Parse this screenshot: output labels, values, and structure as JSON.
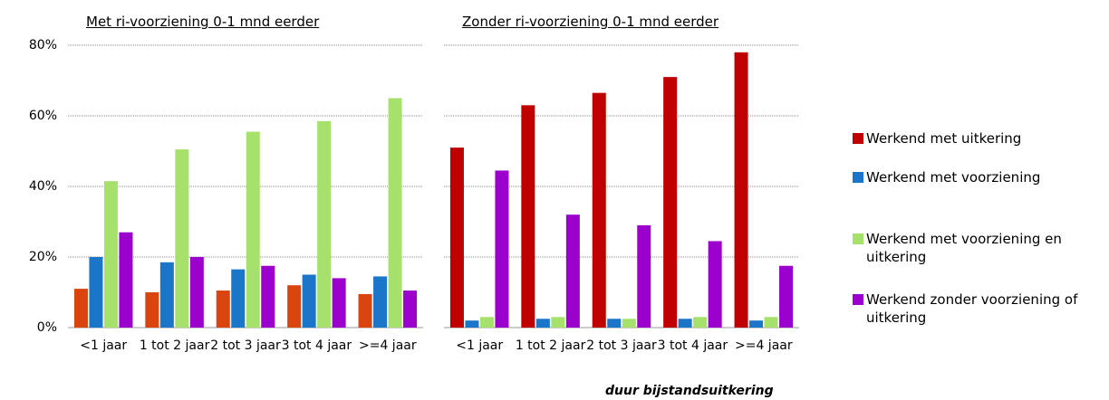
{
  "chart_data": [
    {
      "type": "bar",
      "title": "Met ri-voorziening 0-1 mnd eerder",
      "categories": [
        "<1 jaar",
        "1 tot 2 jaar",
        "2 tot 3 jaar",
        "3 tot 4 jaar",
        ">=4 jaar"
      ],
      "series": [
        {
          "color": "#d9440f",
          "values": [
            11,
            10,
            10.5,
            12,
            9.5
          ]
        },
        {
          "color": "#1b75c9",
          "values": [
            20,
            18.5,
            16.5,
            15,
            14.5
          ]
        },
        {
          "color": "#a6e26b",
          "values": [
            41.5,
            50.5,
            55.5,
            58.5,
            65
          ]
        },
        {
          "color": "#9b00cc",
          "values": [
            27,
            20,
            17.5,
            14,
            10.5
          ]
        }
      ],
      "ylim": [
        0,
        80
      ],
      "yticks": [
        {
          "value": 0,
          "label": "0%"
        },
        {
          "value": 20,
          "label": "20%"
        },
        {
          "value": 40,
          "label": "40%"
        },
        {
          "value": 60,
          "label": "60%"
        },
        {
          "value": 80,
          "label": "80%"
        }
      ],
      "grid": true
    },
    {
      "type": "bar",
      "title": "Zonder ri-voorziening 0-1 mnd eerder",
      "x_label": "duur bijstandsuitkering",
      "categories": [
        "<1 jaar",
        "1 tot 2 jaar",
        "2 tot 3 jaar",
        "3 tot 4 jaar",
        ">=4 jaar"
      ],
      "series": [
        {
          "name": "Werkend met uitkering",
          "color": "#c00000",
          "values": [
            51,
            63,
            66.5,
            71,
            78
          ]
        },
        {
          "name": "Werkend met voorziening",
          "color": "#1b75c9",
          "values": [
            2,
            2.5,
            2.5,
            2.5,
            2
          ]
        },
        {
          "name": "Werkend met voorziening en uitkering",
          "color": "#a6e26b",
          "values": [
            3,
            3,
            2.5,
            3,
            3
          ]
        },
        {
          "name": "Werkend zonder voorziening of uitkering",
          "color": "#9b00cc",
          "values": [
            44.5,
            32,
            29,
            24.5,
            17.5
          ]
        }
      ],
      "ylim": [
        0,
        80
      ],
      "yticks": [
        0,
        20,
        40,
        60,
        80
      ],
      "grid": true
    }
  ]
}
